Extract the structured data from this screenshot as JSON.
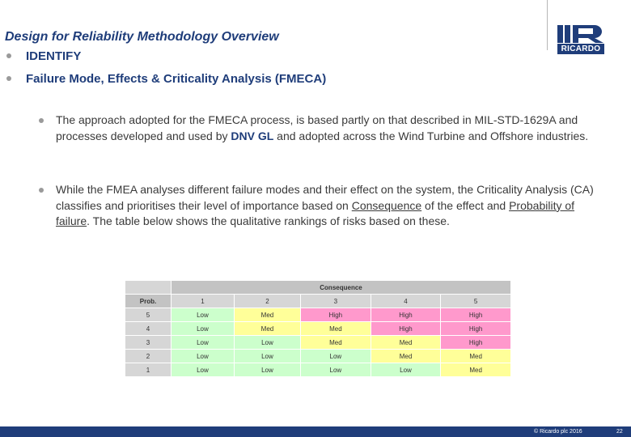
{
  "header": {
    "title": "Design for Reliability Methodology Overview",
    "logo_text": "RICARDO"
  },
  "main_bullets": [
    {
      "label": "IDENTIFY"
    },
    {
      "label": "Failure Mode, Effects & Criticality Analysis (FMECA)"
    }
  ],
  "paragraphs": {
    "p1": {
      "part1": "The approach adopted for the FMECA process, is based partly on that described in MIL-STD-1629A and processes developed and used by ",
      "bold": "DNV GL",
      "part2": " and adopted across the Wind Turbine and Offshore industries."
    },
    "p2": {
      "part1": "While the FMEA analyses different failure modes and their effect on the system, the Criticality Analysis (CA) classifies and prioritises their level of importance based on ",
      "link1": "Consequence",
      "part2": " of the effect and ",
      "link2": "Probability of failure",
      "part3": ". The table below shows the qualitative rankings of risks based on these."
    }
  },
  "risk_table": {
    "consequence_header": "Consequence",
    "prob_header": "Prob.",
    "consequence_levels": [
      "1",
      "2",
      "3",
      "4",
      "5"
    ],
    "rows": [
      {
        "prob": "5",
        "cells": [
          "Low",
          "Med",
          "High",
          "High",
          "High"
        ]
      },
      {
        "prob": "4",
        "cells": [
          "Low",
          "Med",
          "Med",
          "High",
          "High"
        ]
      },
      {
        "prob": "3",
        "cells": [
          "Low",
          "Low",
          "Med",
          "Med",
          "High"
        ]
      },
      {
        "prob": "2",
        "cells": [
          "Low",
          "Low",
          "Low",
          "Med",
          "Med"
        ]
      },
      {
        "prob": "1",
        "cells": [
          "Low",
          "Low",
          "Low",
          "Low",
          "Med"
        ]
      }
    ],
    "colors": {
      "Low": "#ccffcc",
      "Med": "#ffff99",
      "High": "#ff99cc"
    }
  },
  "footer": {
    "copyright": "© Ricardo plc 2016",
    "page": "22"
  },
  "colors": {
    "brand": "#1f3d7a"
  }
}
